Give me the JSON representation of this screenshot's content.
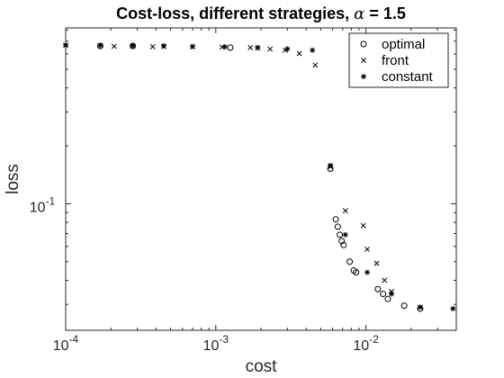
{
  "chart_data": {
    "type": "scatter",
    "title": "Cost-loss, different strategies, ",
    "title_symbol": "α",
    "title_suffix": " = 1.5",
    "xlabel": "cost",
    "ylabel": "loss",
    "x_scale": "log",
    "y_scale": "log",
    "xlim": [
      0.0001,
      0.04
    ],
    "ylim": [
      0.022,
      0.82
    ],
    "x_ticks": [
      {
        "value": 0.0001,
        "base": "10",
        "exp": "-4"
      },
      {
        "value": 0.001,
        "base": "10",
        "exp": "-3"
      },
      {
        "value": 0.01,
        "base": "10",
        "exp": "-2"
      }
    ],
    "y_ticks": [
      {
        "value": 0.1,
        "base": "10",
        "exp": "-1"
      }
    ],
    "legend_position": "top-right",
    "grid": false,
    "series": [
      {
        "name": "optimal",
        "marker": "circle",
        "color": "#000000",
        "points": [
          [
            0.00017,
            0.66
          ],
          [
            0.00028,
            0.66
          ],
          [
            0.00125,
            0.648
          ],
          [
            0.0058,
            0.152
          ],
          [
            0.0063,
            0.083
          ],
          [
            0.0065,
            0.076
          ],
          [
            0.0067,
            0.069
          ],
          [
            0.0069,
            0.064
          ],
          [
            0.0071,
            0.061
          ],
          [
            0.0078,
            0.05
          ],
          [
            0.0083,
            0.045
          ],
          [
            0.0086,
            0.044
          ],
          [
            0.012,
            0.036
          ],
          [
            0.013,
            0.034
          ],
          [
            0.014,
            0.032
          ],
          [
            0.018,
            0.0295
          ],
          [
            0.023,
            0.0285
          ]
        ]
      },
      {
        "name": "front",
        "marker": "x",
        "color": "#000000",
        "points": [
          [
            0.0001,
            0.665
          ],
          [
            0.00017,
            0.664
          ],
          [
            0.00021,
            0.658
          ],
          [
            0.00028,
            0.66
          ],
          [
            0.00038,
            0.655
          ],
          [
            0.00045,
            0.656
          ],
          [
            0.0007,
            0.655
          ],
          [
            0.0011,
            0.652
          ],
          [
            0.0017,
            0.648
          ],
          [
            0.0019,
            0.645
          ],
          [
            0.0023,
            0.636
          ],
          [
            0.0029,
            0.628
          ],
          [
            0.0036,
            0.604
          ],
          [
            0.0046,
            0.525
          ],
          [
            0.0058,
            0.156
          ],
          [
            0.0073,
            0.092
          ],
          [
            0.0096,
            0.077
          ],
          [
            0.0102,
            0.058
          ],
          [
            0.0118,
            0.049
          ],
          [
            0.0133,
            0.04
          ],
          [
            0.0148,
            0.035
          ],
          [
            0.023,
            0.029
          ]
        ]
      },
      {
        "name": "constant",
        "marker": "asterisk",
        "color": "#000000",
        "points": [
          [
            0.0001,
            0.668
          ],
          [
            0.00017,
            0.665
          ],
          [
            0.00028,
            0.665
          ],
          [
            0.00045,
            0.662
          ],
          [
            0.0007,
            0.656
          ],
          [
            0.00115,
            0.654
          ],
          [
            0.0019,
            0.648
          ],
          [
            0.003,
            0.638
          ],
          [
            0.0044,
            0.628
          ],
          [
            0.0058,
            0.158
          ],
          [
            0.0073,
            0.069
          ],
          [
            0.0102,
            0.044
          ],
          [
            0.0148,
            0.034
          ],
          [
            0.023,
            0.029
          ],
          [
            0.038,
            0.0285
          ]
        ]
      }
    ]
  }
}
